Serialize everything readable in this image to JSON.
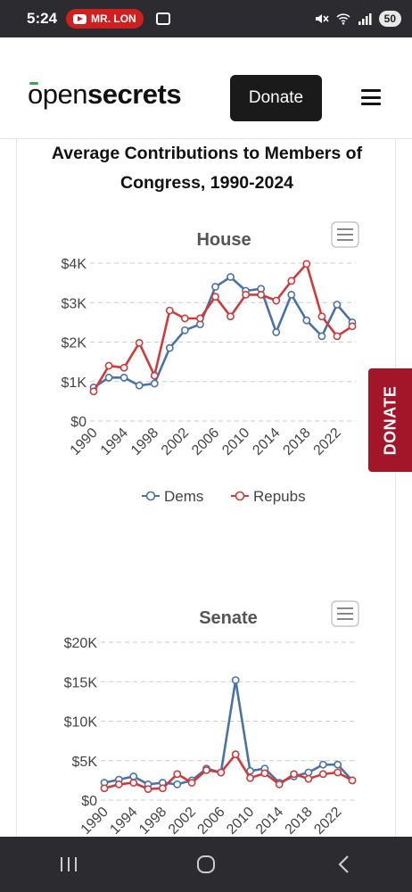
{
  "status_bar": {
    "time": "5:24",
    "yt_label": "MR. LON",
    "battery": "50"
  },
  "header": {
    "logo_open": "open",
    "logo_secrets": "secrets",
    "donate_label": "Donate"
  },
  "page_title": "Average Contributions to Members of Congress, 1990-2024",
  "side_donate_label": "DONATE",
  "colors": {
    "dems": "#4a72a8",
    "repubs": "#cf3a3a",
    "side_donate": "#a3162a"
  },
  "icons": {
    "menu": "hamburger-icon",
    "chart_menu": "chart-menu-icon",
    "nav_recent": "recent-apps-icon",
    "nav_home": "home-icon",
    "nav_back": "back-icon"
  },
  "chart_data": [
    {
      "type": "line",
      "title": "House",
      "x": [
        1990,
        1992,
        1994,
        1996,
        1998,
        2000,
        2002,
        2004,
        2006,
        2008,
        2010,
        2012,
        2014,
        2016,
        2018,
        2020,
        2022,
        2024
      ],
      "x_tick_labels": [
        "1990",
        "1994",
        "1998",
        "2002",
        "2006",
        "2010",
        "2014",
        "2018",
        "2022"
      ],
      "y_tick_labels": [
        "$0",
        "$1K",
        "$2K",
        "$3K",
        "$4K"
      ],
      "ylim": [
        0,
        4000
      ],
      "grid": true,
      "legend": "bottom-center",
      "series": [
        {
          "name": "Dems",
          "values": [
            850,
            1100,
            1100,
            900,
            950,
            1850,
            2300,
            2450,
            3400,
            3650,
            3300,
            3350,
            2250,
            3200,
            2550,
            2150,
            2950,
            2500
          ]
        },
        {
          "name": "Repubs",
          "values": [
            750,
            1400,
            1350,
            1980,
            1150,
            2800,
            2600,
            2600,
            3150,
            2650,
            3200,
            3200,
            3050,
            3550,
            3980,
            2650,
            2150,
            2400
          ]
        }
      ]
    },
    {
      "type": "line",
      "title": "Senate",
      "x": [
        1990,
        1992,
        1994,
        1996,
        1998,
        2000,
        2002,
        2004,
        2006,
        2008,
        2010,
        2012,
        2014,
        2016,
        2018,
        2020,
        2022,
        2024
      ],
      "x_tick_labels": [
        "1990",
        "1994",
        "1998",
        "2002",
        "2006",
        "2010",
        "2014",
        "2018",
        "2022"
      ],
      "y_tick_labels": [
        "$0",
        "$5K",
        "$10K",
        "$15K",
        "$20K"
      ],
      "ylim": [
        0,
        20000
      ],
      "grid": true,
      "series": [
        {
          "name": "Dems",
          "values": [
            2200,
            2600,
            3000,
            2000,
            2200,
            2000,
            2500,
            4000,
            3500,
            15200,
            3700,
            4000,
            2200,
            3000,
            3500,
            4500,
            4500,
            2500
          ]
        },
        {
          "name": "Repubs",
          "values": [
            1500,
            2000,
            2200,
            1400,
            1500,
            3300,
            2200,
            3800,
            3500,
            5800,
            2800,
            3400,
            2000,
            3300,
            2700,
            3300,
            3500,
            2500
          ]
        }
      ]
    }
  ]
}
